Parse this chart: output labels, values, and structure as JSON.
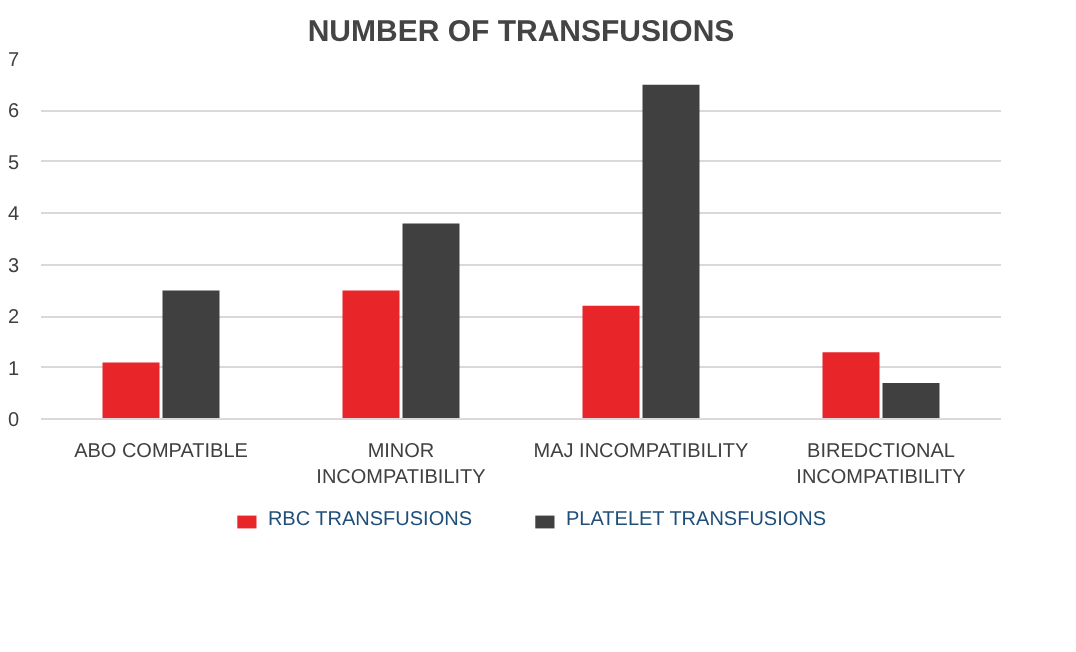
{
  "chart_data": {
    "type": "bar",
    "title": "NUMBER OF TRANSFUSIONS",
    "categories": [
      "ABO COMPATIBLE",
      "MINOR\nINCOMPATIBILITY",
      "MAJ INCOMPATIBILITY",
      "BIREDCTIONAL\nINCOMPATIBILITY"
    ],
    "series": [
      {
        "name": "RBC TRANSFUSIONS",
        "color": "#e8262a",
        "values": [
          1.1,
          2.5,
          2.2,
          1.3
        ]
      },
      {
        "name": "PLATELET TRANSFUSIONS",
        "color": "#404040",
        "values": [
          2.5,
          3.8,
          6.5,
          0.7
        ]
      }
    ],
    "ylim": [
      0,
      7
    ],
    "yticks": [
      0,
      1,
      2,
      3,
      4,
      5,
      6,
      7
    ],
    "grid": "y",
    "legend": "bottom"
  }
}
